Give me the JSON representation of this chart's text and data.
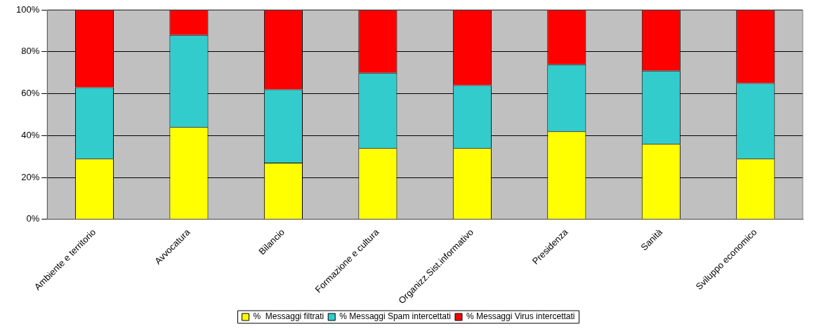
{
  "chart_data": {
    "type": "bar",
    "stacked": true,
    "categories": [
      "Ambiente e territorio",
      "Avvocatura",
      "Bilancio",
      "Formazione e cultura",
      "Organizz.Sist.informativo",
      "Presidenza",
      "Sanità",
      "Sviluppo economico"
    ],
    "series": [
      {
        "name": "%  Messaggi filtrati",
        "color": "#ffff00",
        "values": [
          29,
          44,
          27,
          34,
          34,
          42,
          36,
          29
        ]
      },
      {
        "name": "% Messaggi Spam intercettati",
        "color": "#33cccc",
        "values": [
          34,
          44,
          35,
          36,
          30,
          32,
          35,
          36
        ]
      },
      {
        "name": "% Messaggi Virus intercettati",
        "color": "#ff0000",
        "values": [
          37,
          12,
          38,
          30,
          36,
          26,
          29,
          35
        ]
      }
    ],
    "ylim": [
      0,
      100
    ],
    "yticks": [
      {
        "value": 0,
        "label": "0%"
      },
      {
        "value": 20,
        "label": "20%"
      },
      {
        "value": 40,
        "label": "40%"
      },
      {
        "value": 60,
        "label": "60%"
      },
      {
        "value": 80,
        "label": "80%"
      },
      {
        "value": 100,
        "label": "100%"
      }
    ],
    "grid": "y",
    "legend": "bottom"
  }
}
